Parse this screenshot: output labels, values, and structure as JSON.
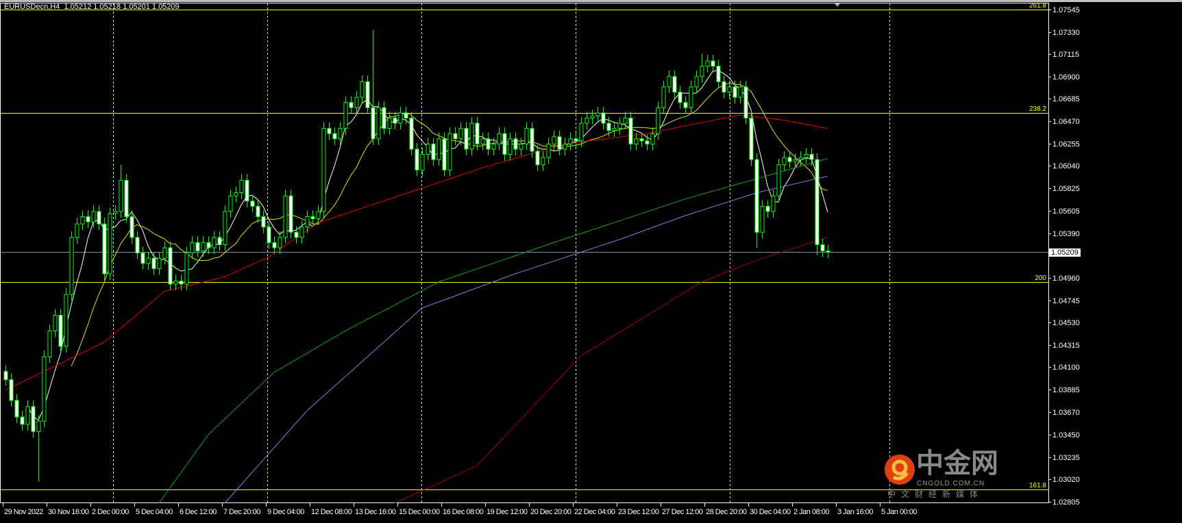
{
  "header": {
    "symbol": "EURUSDecn,H4",
    "ohlc": "1.05212 1.05218 1.05201 1.05209"
  },
  "bid_label": "1.05209",
  "watermark": {
    "brand": "中金网",
    "domain": "CNGOLD.COM.CN",
    "slogan": "中文财经新媒体"
  },
  "colors": {
    "background": "#000000",
    "candle_outline": "#00ff00",
    "bull_fill": "#000000",
    "bear_fill": "#ffffff",
    "fib": "#ffff00",
    "bid_line": "#8090a0"
  },
  "chart_data": {
    "type": "candlestick",
    "timeframe": "H4",
    "ylim": [
      1.02805,
      1.07545
    ],
    "price_ticks": [
      "1.07545",
      "1.07330",
      "1.07115",
      "1.06900",
      "1.06685",
      "1.06470",
      "1.06255",
      "1.06040",
      "1.05825",
      "1.05605",
      "1.05390",
      "1.04960",
      "1.04745",
      "1.04530",
      "1.04315",
      "1.04100",
      "1.03885",
      "1.03670",
      "1.03450",
      "1.03235",
      "1.03020",
      "1.02805"
    ],
    "time_ticks": [
      "29 Nov 2022",
      "30 Nov 16:00",
      "2 Dec 00:00",
      "5 Dec 04:00",
      "6 Dec 12:00",
      "7 Dec 20:00",
      "9 Dec 04:00",
      "12 Dec 08:00",
      "13 Dec 16:00",
      "15 Dec 00:00",
      "16 Dec 08:00",
      "19 Dec 12:00",
      "20 Dec 20:00",
      "22 Dec 04:00",
      "23 Dec 12:00",
      "27 Dec 12:00",
      "28 Dec 20:00",
      "30 Dec 04:00",
      "2 Jan 08:00",
      "3 Jan 16:00",
      "5 Jan 00:00"
    ],
    "close": [
      1.0398,
      1.0378,
      1.0362,
      1.0355,
      1.0372,
      1.0348,
      1.0358,
      1.042,
      1.0445,
      1.046,
      1.043,
      1.048,
      1.0535,
      1.0548,
      1.0555,
      1.055,
      1.056,
      1.0548,
      1.05,
      1.0558,
      1.056,
      1.059,
      1.0555,
      1.0535,
      1.052,
      1.051,
      1.0515,
      1.0505,
      1.0515,
      1.0525,
      1.049,
      1.0493,
      1.049,
      1.052,
      1.053,
      1.0522,
      1.053,
      1.0525,
      1.0535,
      1.0528,
      1.056,
      1.0575,
      1.0578,
      1.059,
      1.057,
      1.0565,
      1.0555,
      1.0545,
      1.053,
      1.0525,
      1.0535,
      1.0575,
      1.054,
      1.0535,
      1.0545,
      1.0555,
      1.0553,
      1.056,
      1.064,
      1.0635,
      1.063,
      1.064,
      1.0665,
      1.066,
      1.067,
      1.0685,
      1.066,
      1.063,
      1.066,
      1.064,
      1.065,
      1.0645,
      1.0655,
      1.065,
      1.062,
      1.06,
      1.0615,
      1.0625,
      1.061,
      1.063,
      1.06,
      1.0635,
      1.063,
      1.064,
      1.062,
      1.0645,
      1.0625,
      1.063,
      1.062,
      1.0625,
      1.0635,
      1.0615,
      1.063,
      1.062,
      1.0625,
      1.064,
      1.0618,
      1.0605,
      1.0612,
      1.0625,
      1.0632,
      1.062,
      1.0625,
      1.063,
      1.0628,
      1.0645,
      1.065,
      1.0652,
      1.0655,
      1.0645,
      1.0638,
      1.064,
      1.0645,
      1.065,
      1.0625,
      1.063,
      1.0628,
      1.0625,
      1.0635,
      1.066,
      1.068,
      1.069,
      1.0675,
      1.0665,
      1.066,
      1.068,
      1.069,
      1.07,
      1.0705,
      1.07,
      1.0685,
      1.0675,
      1.068,
      1.067,
      1.068,
      1.065,
      1.061,
      1.054,
      1.0565,
      1.056,
      1.0575,
      1.0605,
      1.0612,
      1.0608,
      1.061,
      1.0612,
      1.0615,
      1.061,
      1.0528,
      1.0522,
      1.05209
    ],
    "extremes": [
      {
        "i": 6,
        "low": 1.03
      },
      {
        "i": 21,
        "high": 1.0605
      },
      {
        "i": 67,
        "high": 1.0735
      },
      {
        "i": 127,
        "high": 1.0712
      },
      {
        "i": 137,
        "low": 1.0525
      },
      {
        "i": 148,
        "low": 1.0518
      }
    ],
    "fib_levels": [
      {
        "label": "261.8",
        "price": 1.07545
      },
      {
        "label": "238.2",
        "price": 1.0655
      },
      {
        "label": "200",
        "price": 1.0492
      },
      {
        "label": "161.8",
        "price": 1.0292
      }
    ],
    "moving_averages": [
      {
        "color": "#ffffff",
        "type": "sma",
        "period": 5
      },
      {
        "color": "#e6e600",
        "type": "sma",
        "period": 13
      },
      {
        "color": "#e00000",
        "points": [
          [
            0,
            1.0388
          ],
          [
            18,
            1.0434
          ],
          [
            29,
            1.0483
          ],
          [
            40,
            1.0497
          ],
          [
            48,
            1.0516
          ],
          [
            57,
            1.0549
          ],
          [
            74,
            1.0579
          ],
          [
            87,
            1.0602
          ],
          [
            102,
            1.0625
          ],
          [
            117,
            1.0635
          ],
          [
            134,
            1.0653
          ],
          [
            142,
            1.0648
          ],
          [
            150,
            1.064
          ]
        ]
      },
      {
        "color": "#10a010",
        "points": [
          [
            28,
            1.0279
          ],
          [
            37,
            1.0345
          ],
          [
            49,
            1.0405
          ],
          [
            62,
            1.0445
          ],
          [
            79,
            1.0492
          ],
          [
            100,
            1.053
          ],
          [
            124,
            1.0572
          ],
          [
            150,
            1.0611
          ]
        ]
      },
      {
        "color": "#8080e0",
        "points": [
          [
            40,
            1.0279
          ],
          [
            55,
            1.0368
          ],
          [
            76,
            1.0467
          ],
          [
            93,
            1.05
          ],
          [
            112,
            1.0533
          ],
          [
            124,
            1.0556
          ],
          [
            137,
            1.0578
          ],
          [
            150,
            1.0594
          ]
        ]
      },
      {
        "color": "#a00000",
        "points": [
          [
            71,
            1.0279
          ],
          [
            86,
            1.0315
          ],
          [
            105,
            1.0421
          ],
          [
            127,
            1.0492
          ],
          [
            137,
            1.0513
          ],
          [
            150,
            1.0535
          ]
        ]
      }
    ]
  }
}
